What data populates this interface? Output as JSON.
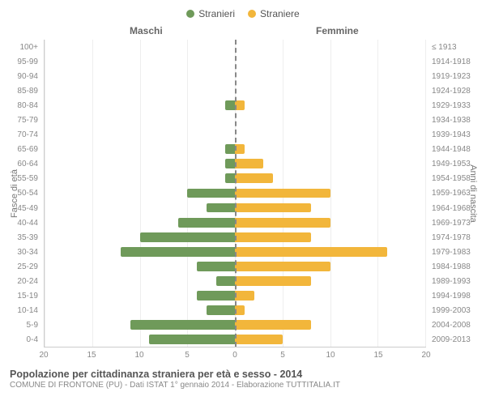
{
  "chart": {
    "type": "population-pyramid",
    "legend": [
      {
        "label": "Stranieri",
        "color": "#6f9a5a"
      },
      {
        "label": "Straniere",
        "color": "#f2b63b"
      }
    ],
    "header_left": "Maschi",
    "header_right": "Femmine",
    "y_left_title": "Fasce di età",
    "y_right_title": "Anni di nascita",
    "x_max": 20,
    "x_ticks": [
      20,
      15,
      10,
      5,
      0,
      5,
      10,
      15,
      20
    ],
    "grid_color": "#eeeeee",
    "center_line_color": "#888888",
    "bar_color_male": "#6f9a5a",
    "bar_color_female": "#f2b63b",
    "background": "#ffffff",
    "rows": [
      {
        "age": "100+",
        "birth": "≤ 1913",
        "m": 0,
        "f": 0
      },
      {
        "age": "95-99",
        "birth": "1914-1918",
        "m": 0,
        "f": 0
      },
      {
        "age": "90-94",
        "birth": "1919-1923",
        "m": 0,
        "f": 0
      },
      {
        "age": "85-89",
        "birth": "1924-1928",
        "m": 0,
        "f": 0
      },
      {
        "age": "80-84",
        "birth": "1929-1933",
        "m": 1,
        "f": 1
      },
      {
        "age": "75-79",
        "birth": "1934-1938",
        "m": 0,
        "f": 0
      },
      {
        "age": "70-74",
        "birth": "1939-1943",
        "m": 0,
        "f": 0
      },
      {
        "age": "65-69",
        "birth": "1944-1948",
        "m": 1,
        "f": 1
      },
      {
        "age": "60-64",
        "birth": "1949-1953",
        "m": 1,
        "f": 3
      },
      {
        "age": "55-59",
        "birth": "1954-1958",
        "m": 1,
        "f": 4
      },
      {
        "age": "50-54",
        "birth": "1959-1963",
        "m": 5,
        "f": 10
      },
      {
        "age": "45-49",
        "birth": "1964-1968",
        "m": 3,
        "f": 8
      },
      {
        "age": "40-44",
        "birth": "1969-1973",
        "m": 6,
        "f": 10
      },
      {
        "age": "35-39",
        "birth": "1974-1978",
        "m": 10,
        "f": 8
      },
      {
        "age": "30-34",
        "birth": "1979-1983",
        "m": 12,
        "f": 16
      },
      {
        "age": "25-29",
        "birth": "1984-1988",
        "m": 4,
        "f": 10
      },
      {
        "age": "20-24",
        "birth": "1989-1993",
        "m": 2,
        "f": 8
      },
      {
        "age": "15-19",
        "birth": "1994-1998",
        "m": 4,
        "f": 2
      },
      {
        "age": "10-14",
        "birth": "1999-2003",
        "m": 3,
        "f": 1
      },
      {
        "age": "5-9",
        "birth": "2004-2008",
        "m": 11,
        "f": 8
      },
      {
        "age": "0-4",
        "birth": "2009-2013",
        "m": 9,
        "f": 5
      }
    ]
  },
  "caption": {
    "title": "Popolazione per cittadinanza straniera per età e sesso - 2014",
    "subtitle": "COMUNE DI FRONTONE (PU) - Dati ISTAT 1° gennaio 2014 - Elaborazione TUTTITALIA.IT"
  }
}
